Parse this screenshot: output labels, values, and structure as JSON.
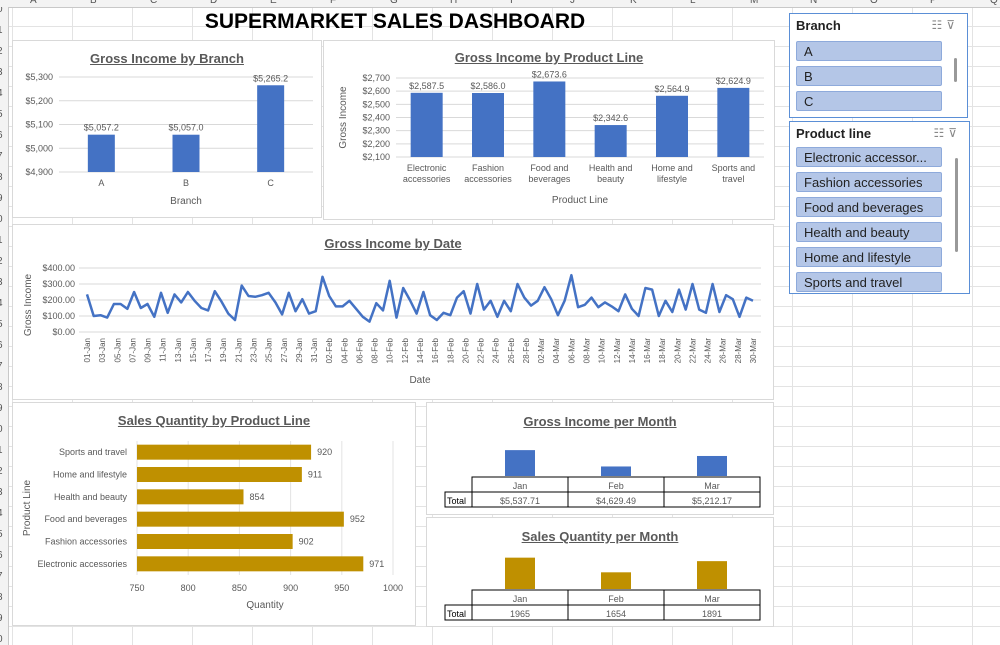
{
  "sheet": {
    "columns": [
      "A",
      "B",
      "C",
      "D",
      "E",
      "F",
      "G",
      "H",
      "I",
      "J",
      "K",
      "L",
      "M",
      "N",
      "O",
      "P",
      "Q"
    ],
    "rows": [
      "0",
      "1",
      "2",
      "3",
      "4",
      "5",
      "6",
      "7",
      "8",
      "9",
      "0",
      "1",
      "2",
      "3",
      "4",
      "5",
      "6",
      "7",
      "8",
      "9",
      "0",
      "1",
      "2",
      "3",
      "4",
      "5",
      "6",
      "7",
      "8",
      "9",
      "0"
    ]
  },
  "dashboard": {
    "title": "SUPERMARKET SALES DASHBOARD"
  },
  "slicers": {
    "branch": {
      "title": "Branch",
      "items": [
        "A",
        "B",
        "C"
      ]
    },
    "product_line": {
      "title": "Product line",
      "items": [
        "Electronic accessor...",
        "Fashion accessories",
        "Food and beverages",
        "Health and beauty",
        "Home and lifestyle",
        "Sports and travel"
      ]
    }
  },
  "colors": {
    "blue": "#4472C4",
    "gold": "#BF9000",
    "slicer_item": "#B4C6E7"
  },
  "chart_data": [
    {
      "id": "branch",
      "type": "bar",
      "title": "Gross Income by Branch",
      "categories": [
        "A",
        "B",
        "C"
      ],
      "values": [
        5057.2,
        5057.0,
        5265.2
      ],
      "value_labels": [
        "$5,057.2",
        "$5,057.0",
        "$5,265.2"
      ],
      "xlabel": "Branch",
      "ylabel": "",
      "ylim": [
        4900,
        5300
      ],
      "yticks": [
        4900,
        5000,
        5100,
        5200,
        5300
      ],
      "ytick_labels": [
        "$4,900",
        "$5,000",
        "$5,100",
        "$5,200",
        "$5,300"
      ]
    },
    {
      "id": "product",
      "type": "bar",
      "title": "Gross Income by Product Line",
      "categories": [
        "Electronic accessories",
        "Fashion accessories",
        "Food and beverages",
        "Health and beauty",
        "Home and lifestyle",
        "Sports and travel"
      ],
      "category_lines": [
        [
          "Electronic",
          "accessories"
        ],
        [
          "Fashion",
          "accessories"
        ],
        [
          "Food and",
          "beverages"
        ],
        [
          "Health and",
          "beauty"
        ],
        [
          "Home and",
          "lifestyle"
        ],
        [
          "Sports and",
          "travel"
        ]
      ],
      "values": [
        2587.5,
        2586.0,
        2673.6,
        2342.6,
        2564.9,
        2624.9
      ],
      "value_labels": [
        "$2,587.5",
        "$2,586.0",
        "$2,673.6",
        "$2,342.6",
        "$2,564.9",
        "$2,624.9"
      ],
      "xlabel": "Product Line",
      "ylabel": "Gross Income",
      "ylim": [
        2100,
        2700
      ],
      "yticks": [
        2100,
        2200,
        2300,
        2400,
        2500,
        2600,
        2700
      ],
      "ytick_labels": [
        "$2,100",
        "$2,200",
        "$2,300",
        "$2,400",
        "$2,500",
        "$2,600",
        "$2,700"
      ]
    },
    {
      "id": "date",
      "type": "line",
      "title": "Gross Income by Date",
      "x_labels": [
        "01-Jan",
        "03-Jan",
        "05-Jan",
        "07-Jan",
        "09-Jan",
        "11-Jan",
        "13-Jan",
        "15-Jan",
        "17-Jan",
        "19-Jan",
        "21-Jan",
        "23-Jan",
        "25-Jan",
        "27-Jan",
        "29-Jan",
        "31-Jan",
        "02-Feb",
        "04-Feb",
        "06-Feb",
        "08-Feb",
        "10-Feb",
        "12-Feb",
        "14-Feb",
        "16-Feb",
        "18-Feb",
        "20-Feb",
        "22-Feb",
        "24-Feb",
        "26-Feb",
        "28-Feb",
        "02-Mar",
        "04-Mar",
        "06-Mar",
        "08-Mar",
        "10-Mar",
        "12-Mar",
        "14-Mar",
        "16-Mar",
        "18-Mar",
        "20-Mar",
        "22-Mar",
        "24-Mar",
        "26-Mar",
        "28-Mar",
        "30-Mar"
      ],
      "values": [
        235,
        100,
        105,
        90,
        175,
        175,
        145,
        250,
        150,
        175,
        95,
        245,
        120,
        235,
        185,
        250,
        195,
        150,
        135,
        255,
        190,
        115,
        75,
        290,
        225,
        220,
        230,
        245,
        185,
        110,
        245,
        130,
        205,
        115,
        130,
        345,
        225,
        160,
        160,
        195,
        145,
        95,
        65,
        180,
        135,
        320,
        90,
        275,
        200,
        115,
        250,
        105,
        75,
        120,
        105,
        215,
        255,
        115,
        300,
        140,
        195,
        95,
        195,
        130,
        300,
        215,
        165,
        195,
        280,
        205,
        105,
        195,
        355,
        155,
        170,
        215,
        155,
        185,
        160,
        130,
        235,
        145,
        100,
        275,
        265,
        100,
        195,
        125,
        265,
        140,
        300,
        140,
        120,
        300,
        125,
        230,
        205,
        95,
        215,
        195
      ],
      "xlabel": "Date",
      "ylabel": "Gross Income",
      "ylim": [
        0,
        400
      ],
      "yticks": [
        0,
        100,
        200,
        300,
        400
      ],
      "ytick_labels": [
        "$0.00",
        "$100.00",
        "$200.00",
        "$300.00",
        "$400.00"
      ]
    },
    {
      "id": "qty",
      "type": "bar",
      "orientation": "horizontal",
      "title": "Sales Quantity by Product Line",
      "categories": [
        "Sports and travel",
        "Home and lifestyle",
        "Health and beauty",
        "Food and beverages",
        "Fashion accessories",
        "Electronic accessories"
      ],
      "values": [
        920,
        911,
        854,
        952,
        902,
        971
      ],
      "value_labels": [
        "920",
        "911",
        "854",
        "952",
        "902",
        "971"
      ],
      "xlabel": "Quantity",
      "ylabel": "Product Line",
      "xlim": [
        750,
        1000
      ],
      "xticks": [
        750,
        800,
        850,
        900,
        950,
        1000
      ],
      "xtick_labels": [
        "750",
        "800",
        "850",
        "900",
        "950",
        "1000"
      ]
    },
    {
      "id": "income_month",
      "type": "bar",
      "title": "Gross Income per Month",
      "categories": [
        "Jan",
        "Feb",
        "Mar"
      ],
      "values": [
        5537.71,
        4629.49,
        5212.17
      ],
      "table_row_label": "Total",
      "table_values": [
        "$5,537.71",
        "$4,629.49",
        "$5,212.17"
      ],
      "ylim": [
        4100,
        5600
      ]
    },
    {
      "id": "qty_month",
      "type": "bar",
      "title": "Sales Quantity per Month",
      "categories": [
        "Jan",
        "Feb",
        "Mar"
      ],
      "values": [
        1965,
        1654,
        1891
      ],
      "table_row_label": "Total",
      "table_values": [
        "1965",
        "1654",
        "1891"
      ],
      "ylim": [
        1300,
        2000
      ]
    }
  ]
}
